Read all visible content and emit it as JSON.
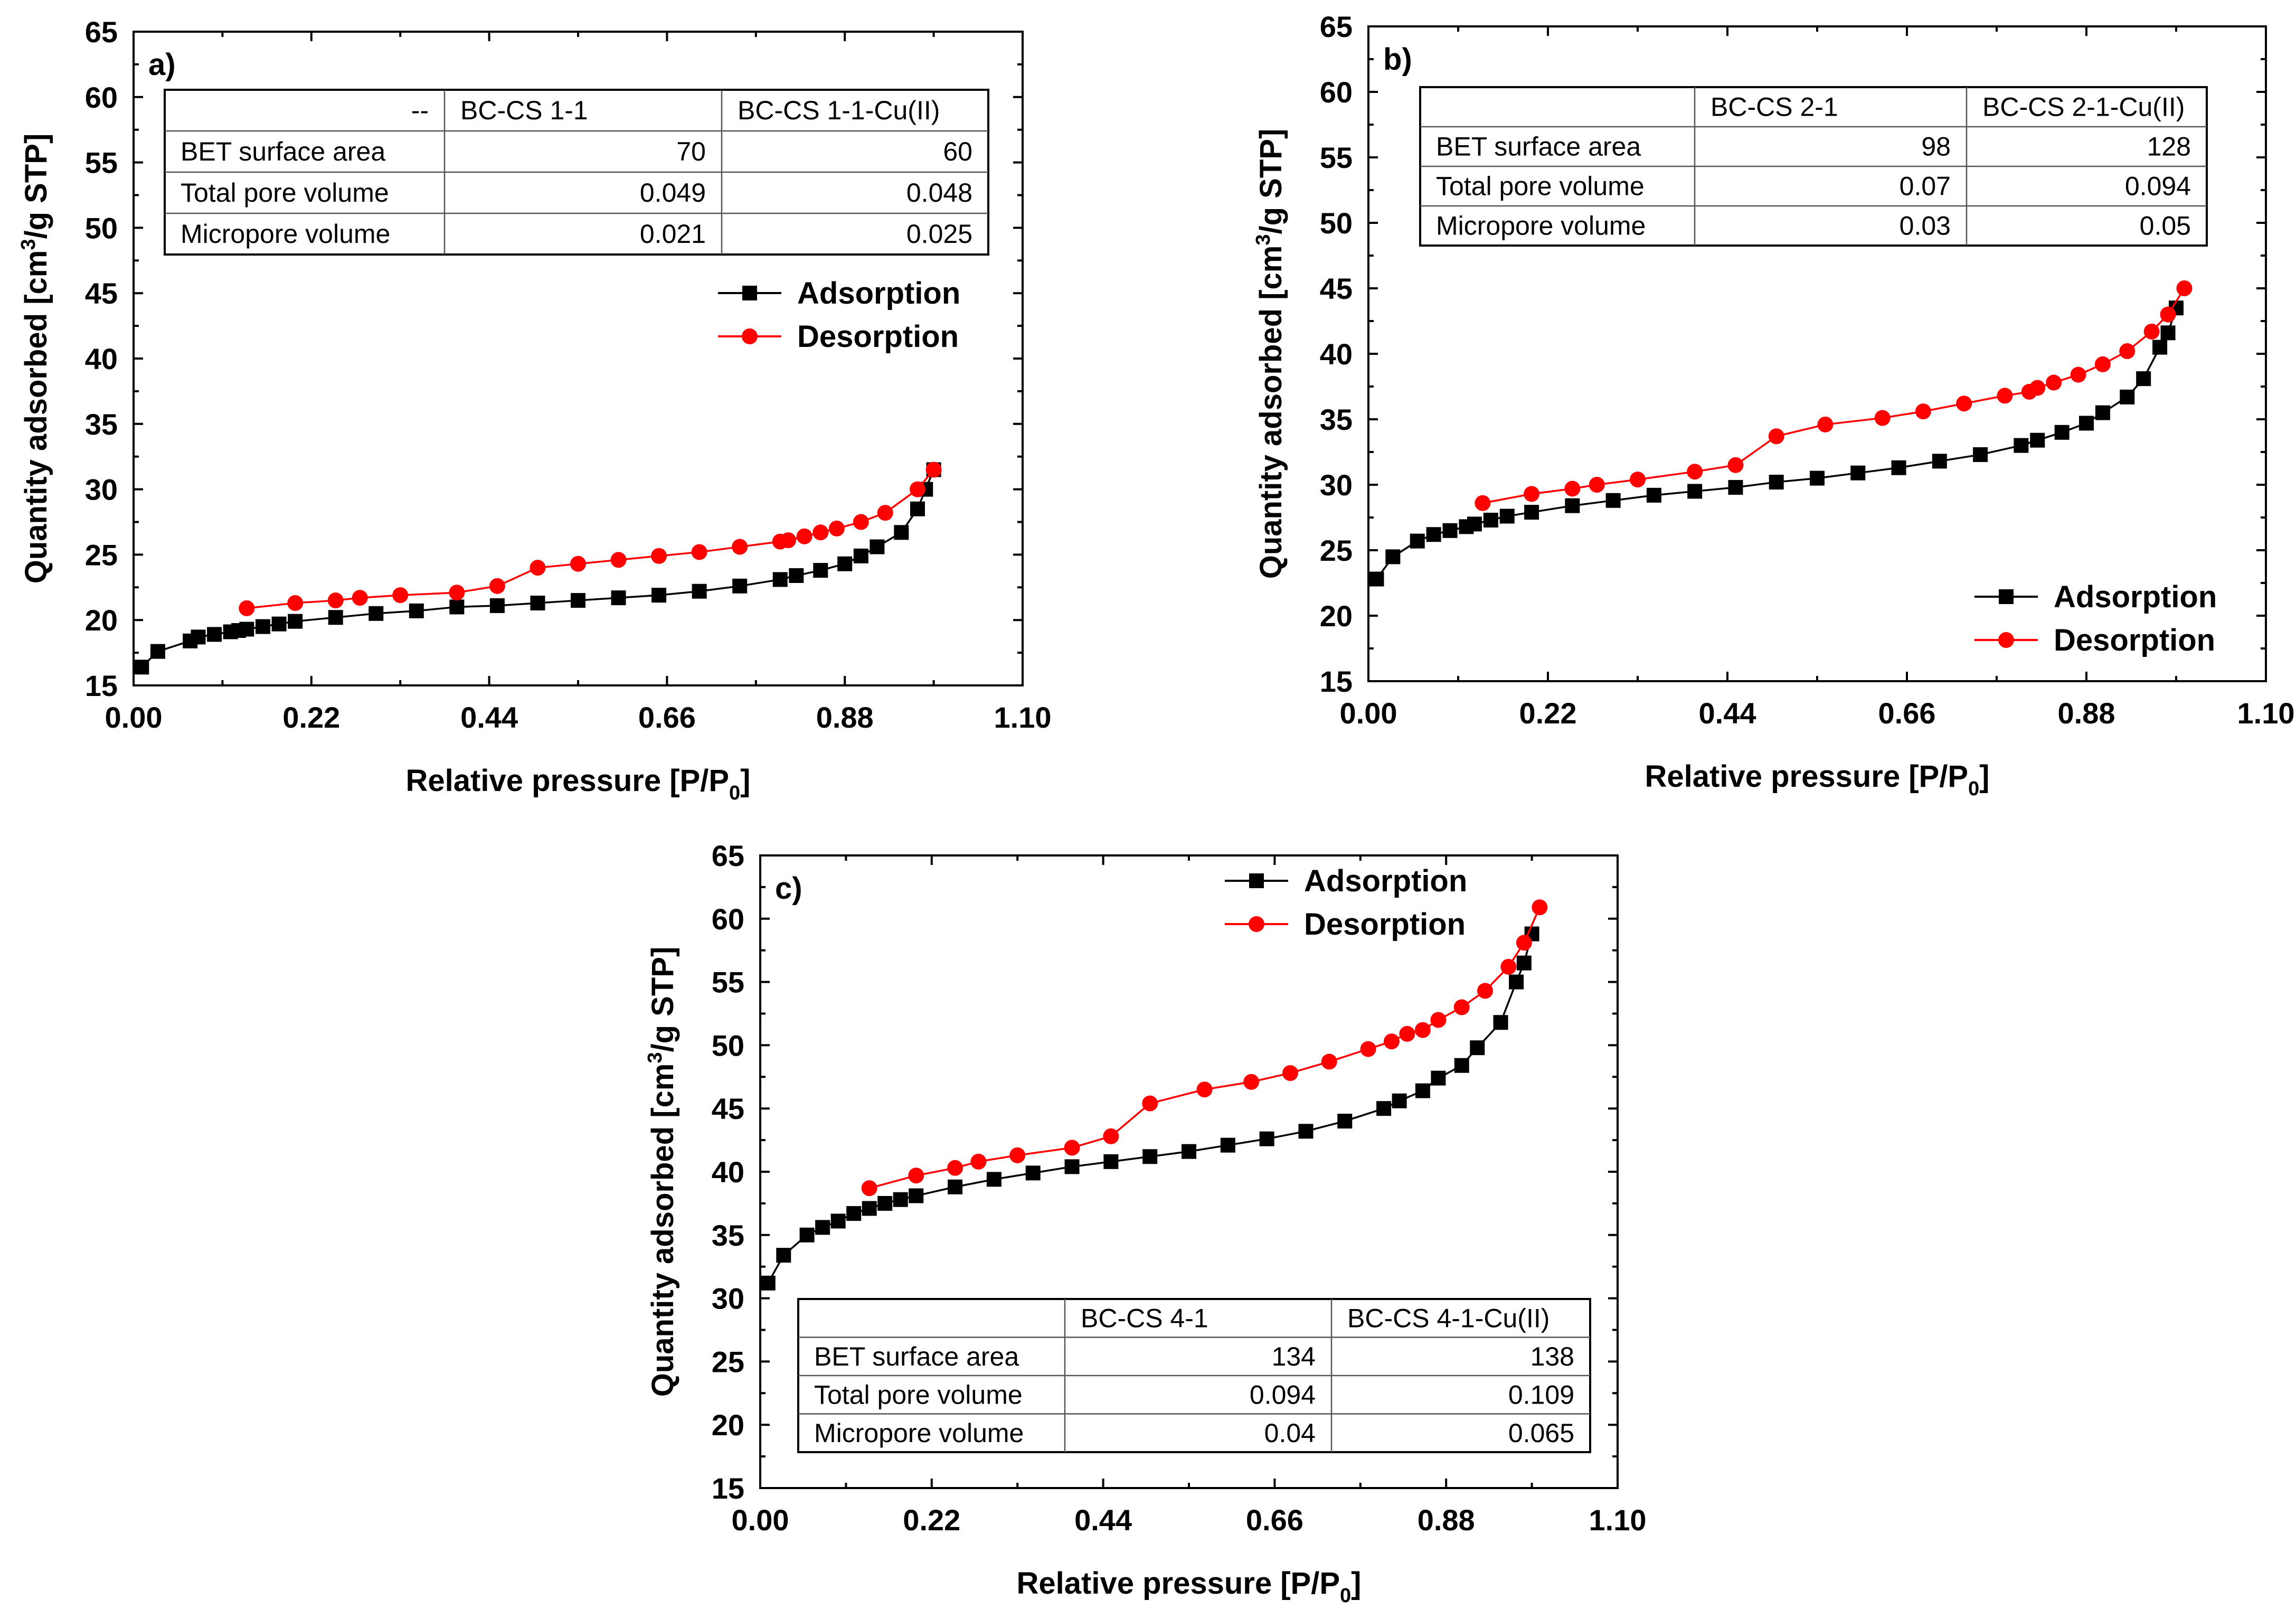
{
  "colors": {
    "adsorption": "#000000",
    "desorption": "#ff0000"
  },
  "chart_data": [
    {
      "panel": "a)",
      "type": "line",
      "xlabel": "Relative pressure [P/P0]",
      "xlabel_main": "Relative pressure [P/P",
      "xlabel_sub": "0",
      "xlabel_end": "]",
      "ylabel": "Quantity adsorbed [cm3/g STP]",
      "ylabel_main": "Quantity adsorbed [cm",
      "ylabel_sup": "3",
      "ylabel_end": "/g STP]",
      "xlim": [
        0,
        1.1
      ],
      "ylim": [
        15,
        65
      ],
      "xticks": [
        0.0,
        0.22,
        0.44,
        0.66,
        0.88,
        1.1
      ],
      "xtick_labels": [
        "0.00",
        "0.22",
        "0.44",
        "0.66",
        "0.88",
        "1.10"
      ],
      "yticks": [
        15,
        20,
        25,
        30,
        35,
        40,
        45,
        50,
        55,
        60,
        65
      ],
      "ytick_labels": [
        "15",
        "20",
        "25",
        "30",
        "35",
        "40",
        "45",
        "50",
        "55",
        "60",
        "65"
      ],
      "legend": [
        "Adsorption",
        "Desorption"
      ],
      "legend_position": "upper-right",
      "series": [
        {
          "name": "Adsorption",
          "marker": "square",
          "x": [
            0.01,
            0.03,
            0.07,
            0.08,
            0.1,
            0.12,
            0.13,
            0.14,
            0.16,
            0.18,
            0.2,
            0.25,
            0.3,
            0.35,
            0.4,
            0.45,
            0.5,
            0.55,
            0.6,
            0.65,
            0.7,
            0.75,
            0.8,
            0.82,
            0.85,
            0.88,
            0.9,
            0.92,
            0.95,
            0.97,
            0.98,
            0.99
          ],
          "y": [
            16.4,
            17.6,
            18.4,
            18.7,
            18.9,
            19.1,
            19.2,
            19.3,
            19.5,
            19.7,
            19.9,
            20.2,
            20.5,
            20.7,
            21.0,
            21.1,
            21.3,
            21.5,
            21.7,
            21.9,
            22.2,
            22.6,
            23.1,
            23.4,
            23.8,
            24.3,
            24.9,
            25.6,
            26.7,
            28.5,
            30.0,
            31.5
          ]
        },
        {
          "name": "Desorption",
          "marker": "circle",
          "x": [
            0.99,
            0.97,
            0.93,
            0.9,
            0.87,
            0.85,
            0.83,
            0.81,
            0.8,
            0.75,
            0.7,
            0.65,
            0.6,
            0.55,
            0.5,
            0.45,
            0.4,
            0.33,
            0.28,
            0.25,
            0.2,
            0.14
          ],
          "y": [
            31.5,
            30.0,
            28.2,
            27.5,
            27.0,
            26.7,
            26.4,
            26.1,
            26.0,
            25.6,
            25.2,
            24.9,
            24.6,
            24.3,
            24.0,
            22.6,
            22.1,
            21.9,
            21.7,
            21.5,
            21.3,
            20.9
          ]
        }
      ],
      "table": {
        "header": [
          "--",
          "BC-CS 1-1",
          "BC-CS 1-1-Cu(II)"
        ],
        "rows": [
          [
            "BET surface area",
            "70",
            "60"
          ],
          [
            "Total pore volume",
            "0.049",
            "0.048"
          ],
          [
            "Micropore volume",
            "0.021",
            "0.025"
          ]
        ]
      }
    },
    {
      "panel": "b)",
      "type": "line",
      "xlabel": "Relative pressure [P/P0]",
      "xlabel_main": "Relative pressure [P/P",
      "xlabel_sub": "0",
      "xlabel_end": "]",
      "ylabel": "Quantity adsorbed [cm3/g STP]",
      "ylabel_main": "Quantity adsorbed [cm",
      "ylabel_sup": "3",
      "ylabel_end": "/g STP]",
      "xlim": [
        0,
        1.1
      ],
      "ylim": [
        15,
        65
      ],
      "xticks": [
        0.0,
        0.22,
        0.44,
        0.66,
        0.88,
        1.1
      ],
      "xtick_labels": [
        "0.00",
        "0.22",
        "0.44",
        "0.66",
        "0.88",
        "1.10"
      ],
      "yticks": [
        15,
        20,
        25,
        30,
        35,
        40,
        45,
        50,
        55,
        60,
        65
      ],
      "ytick_labels": [
        "15",
        "20",
        "25",
        "30",
        "35",
        "40",
        "45",
        "50",
        "55",
        "60",
        "65"
      ],
      "legend": [
        "Adsorption",
        "Desorption"
      ],
      "legend_position": "lower-right",
      "series": [
        {
          "name": "Adsorption",
          "marker": "square",
          "x": [
            0.01,
            0.03,
            0.06,
            0.08,
            0.1,
            0.12,
            0.13,
            0.15,
            0.17,
            0.2,
            0.25,
            0.3,
            0.35,
            0.4,
            0.45,
            0.5,
            0.55,
            0.6,
            0.65,
            0.7,
            0.75,
            0.8,
            0.82,
            0.85,
            0.88,
            0.9,
            0.93,
            0.95,
            0.97,
            0.98,
            0.99
          ],
          "y": [
            22.8,
            24.5,
            25.7,
            26.2,
            26.5,
            26.8,
            27.0,
            27.3,
            27.6,
            27.9,
            28.4,
            28.8,
            29.2,
            29.5,
            29.8,
            30.2,
            30.5,
            30.9,
            31.3,
            31.8,
            32.3,
            33.0,
            33.4,
            34.0,
            34.7,
            35.5,
            36.7,
            38.1,
            40.5,
            41.6,
            43.5
          ]
        },
        {
          "name": "Desorption",
          "marker": "circle",
          "x": [
            1.0,
            0.98,
            0.96,
            0.93,
            0.9,
            0.87,
            0.84,
            0.82,
            0.81,
            0.78,
            0.73,
            0.68,
            0.63,
            0.56,
            0.5,
            0.45,
            0.4,
            0.33,
            0.28,
            0.25,
            0.2,
            0.14
          ],
          "y": [
            45.0,
            43.0,
            41.7,
            40.2,
            39.2,
            38.4,
            37.8,
            37.4,
            37.1,
            36.8,
            36.2,
            35.6,
            35.1,
            34.6,
            33.7,
            31.5,
            31.0,
            30.4,
            30.0,
            29.7,
            29.3,
            28.6
          ]
        }
      ],
      "table": {
        "header": [
          "",
          "BC-CS 2-1",
          "BC-CS 2-1-Cu(II)"
        ],
        "rows": [
          [
            "BET surface area",
            "98",
            "128"
          ],
          [
            "Total pore volume",
            "0.07",
            "0.094"
          ],
          [
            "Micropore volume",
            "0.03",
            "0.05"
          ]
        ]
      }
    },
    {
      "panel": "c)",
      "type": "line",
      "xlabel": "Relative pressure [P/P0]",
      "xlabel_main": "Relative pressure [P/P",
      "xlabel_sub": "0",
      "xlabel_end": "]",
      "ylabel": "Quantity adsorbed [cm3/g STP]",
      "ylabel_main": "Quantity adsorbed [cm",
      "ylabel_sup": "3",
      "ylabel_end": "/g STP]",
      "xlim": [
        0,
        1.1
      ],
      "ylim": [
        15,
        65
      ],
      "xticks": [
        0.0,
        0.22,
        0.44,
        0.66,
        0.88,
        1.1
      ],
      "xtick_labels": [
        "0.00",
        "0.22",
        "0.44",
        "0.66",
        "0.88",
        "1.10"
      ],
      "yticks": [
        15,
        20,
        25,
        30,
        35,
        40,
        45,
        50,
        55,
        60,
        65
      ],
      "ytick_labels": [
        "15",
        "20",
        "25",
        "30",
        "35",
        "40",
        "45",
        "50",
        "55",
        "60",
        "65"
      ],
      "legend": [
        "Adsorption",
        "Desorption"
      ],
      "legend_position": "upper-right",
      "series": [
        {
          "name": "Adsorption",
          "marker": "square",
          "x": [
            0.01,
            0.03,
            0.06,
            0.08,
            0.1,
            0.12,
            0.14,
            0.16,
            0.18,
            0.2,
            0.25,
            0.3,
            0.35,
            0.4,
            0.45,
            0.5,
            0.55,
            0.6,
            0.65,
            0.7,
            0.75,
            0.8,
            0.82,
            0.85,
            0.87,
            0.9,
            0.92,
            0.95,
            0.97,
            0.98,
            0.99
          ],
          "y": [
            31.2,
            33.4,
            35.0,
            35.6,
            36.1,
            36.7,
            37.1,
            37.5,
            37.8,
            38.1,
            38.8,
            39.4,
            39.9,
            40.4,
            40.8,
            41.2,
            41.6,
            42.1,
            42.6,
            43.2,
            44.0,
            45.0,
            45.6,
            46.4,
            47.4,
            48.4,
            49.8,
            51.8,
            55.0,
            56.5,
            58.8
          ]
        },
        {
          "name": "Desorption",
          "marker": "circle",
          "x": [
            1.0,
            0.98,
            0.96,
            0.93,
            0.9,
            0.87,
            0.85,
            0.83,
            0.81,
            0.78,
            0.73,
            0.68,
            0.63,
            0.57,
            0.5,
            0.45,
            0.4,
            0.33,
            0.28,
            0.25,
            0.2,
            0.14
          ],
          "y": [
            60.9,
            58.1,
            56.2,
            54.3,
            53.0,
            52.0,
            51.2,
            50.9,
            50.3,
            49.7,
            48.7,
            47.8,
            47.1,
            46.5,
            45.4,
            42.8,
            41.9,
            41.3,
            40.8,
            40.3,
            39.7,
            38.7
          ]
        }
      ],
      "table": {
        "header": [
          "",
          "BC-CS 4-1",
          "BC-CS 4-1-Cu(II)"
        ],
        "rows": [
          [
            "BET surface area",
            "134",
            "138"
          ],
          [
            "Total pore volume",
            "0.094",
            "0.109"
          ],
          [
            "Micropore volume",
            "0.04",
            "0.065"
          ]
        ]
      }
    }
  ]
}
